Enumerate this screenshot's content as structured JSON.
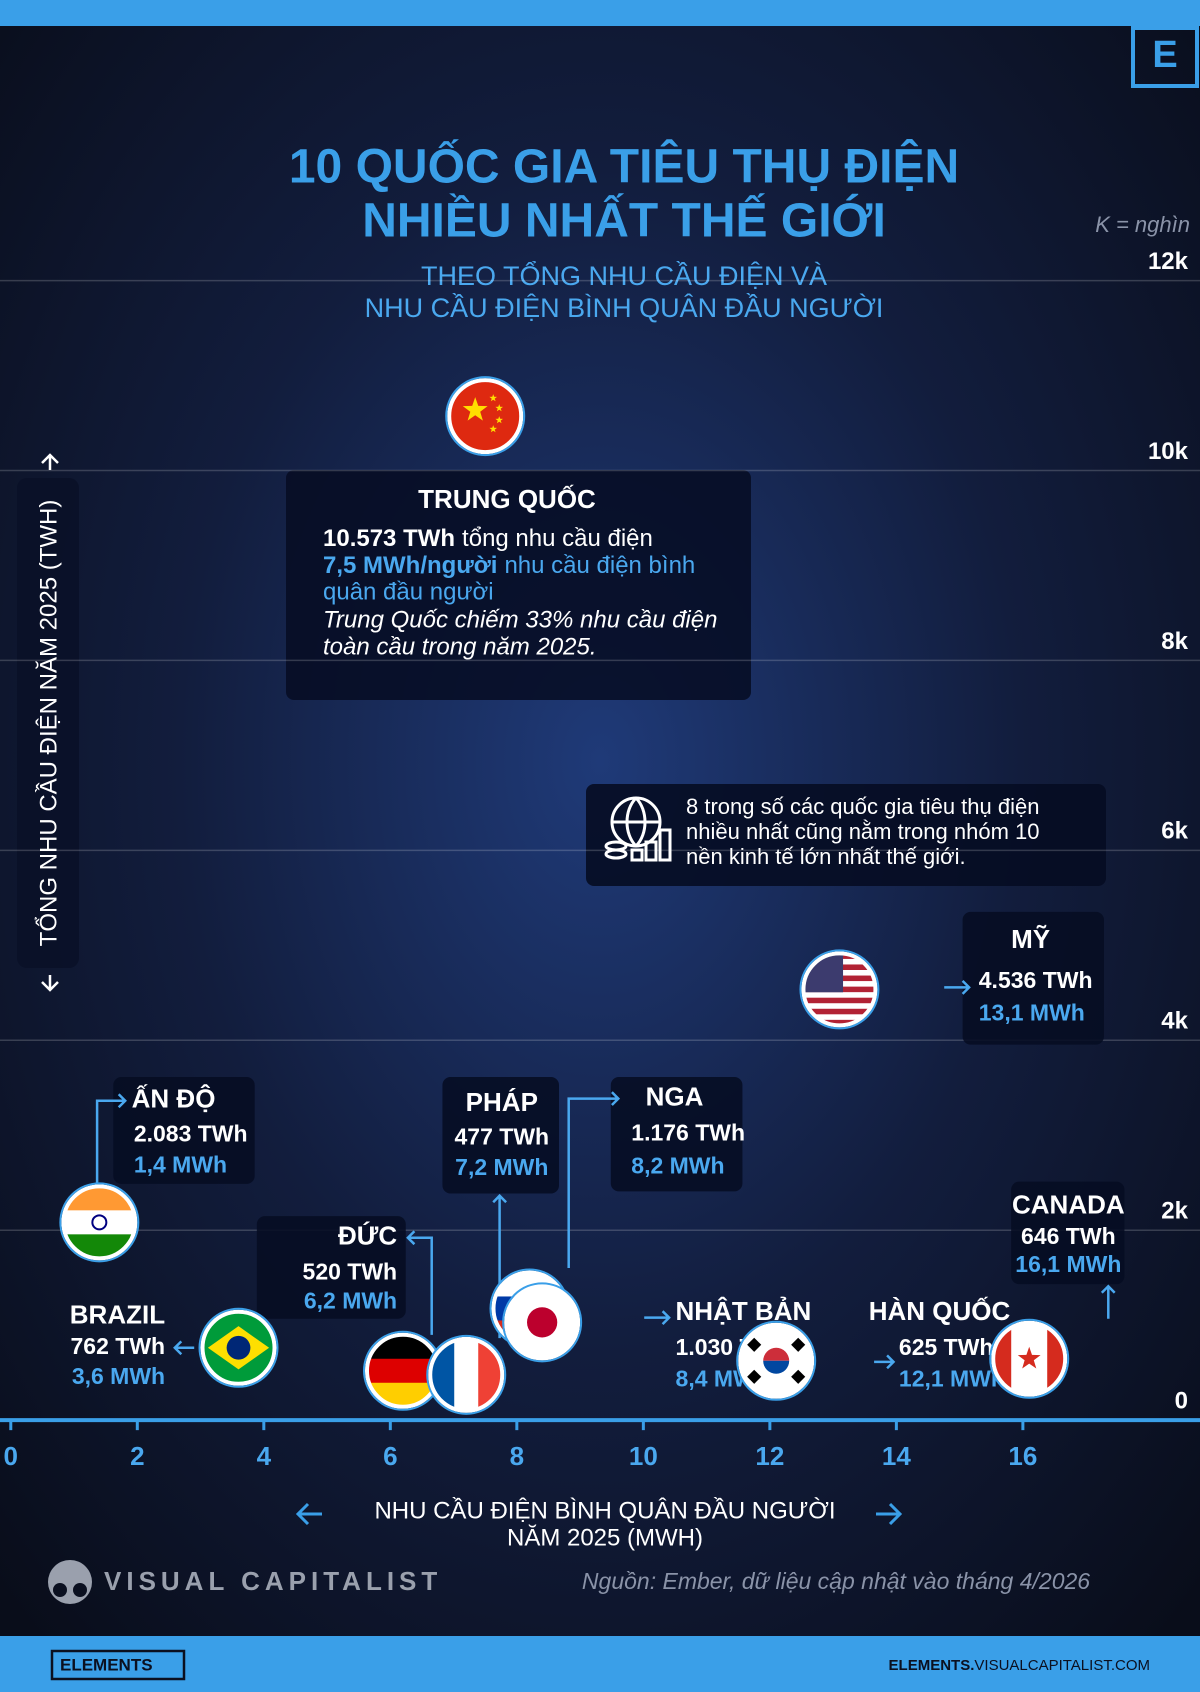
{
  "chart_data": {
    "type": "scatter",
    "title": [
      "10 QUỐC GIA TIÊU THỤ ĐIỆN",
      "NHIỀU NHẤT THẾ GIỚI"
    ],
    "subtitle": [
      "THEO TỔNG NHU CẦU ĐIỆN VÀ",
      "NHU CẦU ĐIỆN BÌNH QUÂN ĐẦU NGƯỜI"
    ],
    "unit_note": "K = nghìn",
    "y_label": "TỔNG NHU CẦU ĐIỆN NĂM 2025 (TWH)",
    "x_label": [
      "NHU CẦU ĐIỆN BÌNH QUÂN ĐẦU NGƯỜI",
      "NĂM 2025 (MWH)"
    ],
    "categories": [
      "TRUNG QUỐC",
      "MỸ",
      "ẤN ĐỘ",
      "NGA",
      "NHẬT BẢN",
      "BRAZIL",
      "CANADA",
      "HÀN QUỐC",
      "ĐỨC",
      "PHÁP"
    ],
    "x": [
      7.5,
      13.1,
      1.4,
      8.2,
      8.4,
      3.6,
      16.1,
      12.1,
      6.2,
      7.2
    ],
    "x_labels": [
      "7,5 MWh/người",
      "13,1 MWh",
      "1,4 MWh",
      "8,2 MWh",
      "8,4 MWh",
      "3,6 MWh",
      "16,1 MWh",
      "12,1 MWh",
      "6,2 MWh",
      "7,2 MWh"
    ],
    "values": [
      10573,
      4536,
      2083,
      1176,
      1030,
      762,
      646,
      625,
      520,
      477
    ],
    "value_labels": [
      "10.573 TWh",
      "4.536 TWh",
      "2.083 TWh",
      "1.176 TWh",
      "1.030 TWh",
      "762 TWh",
      "646 TWh",
      "625 TWh",
      "520 TWh",
      "477 TWh"
    ],
    "xlim": [
      0,
      18.8
    ],
    "xticks": [
      0,
      2,
      4,
      6,
      8,
      10,
      12,
      14,
      16
    ],
    "ylim": [
      0,
      12000
    ],
    "yticks": [
      0,
      {
        "value": 2000,
        "label": "2k"
      },
      {
        "value": 4000,
        "label": "4k"
      },
      {
        "value": 6000,
        "label": "6k"
      },
      {
        "value": 8000,
        "label": "8k"
      },
      {
        "value": 10000,
        "label": "10k"
      },
      {
        "value": 12000,
        "label": "12k"
      }
    ],
    "grid": true,
    "annotations": {
      "china_total_text": "tổng nhu cầu điện",
      "china_per_capita_text": [
        "nhu cầu điện bình",
        "quân đầu người"
      ],
      "china_note": [
        "Trung Quốc chiếm 33% nhu cầu điện",
        "toàn cầu trong năm 2025."
      ],
      "note": [
        "8 trong số các quốc gia tiêu thụ điện",
        "nhiều nhất cũng nằm trong nhóm 10",
        "nền kinh tế lớn nhất thế giới."
      ]
    },
    "source": "Nguồn: Ember, dữ liệu cập nhật vào tháng 4/2026",
    "brand": "VISUAL CAPITALIST",
    "logo": "E",
    "footer_brand": "ELEMENTS",
    "footer_url": [
      "ELEMENTS.",
      "VISUALCAPITALIST.COM"
    ]
  }
}
